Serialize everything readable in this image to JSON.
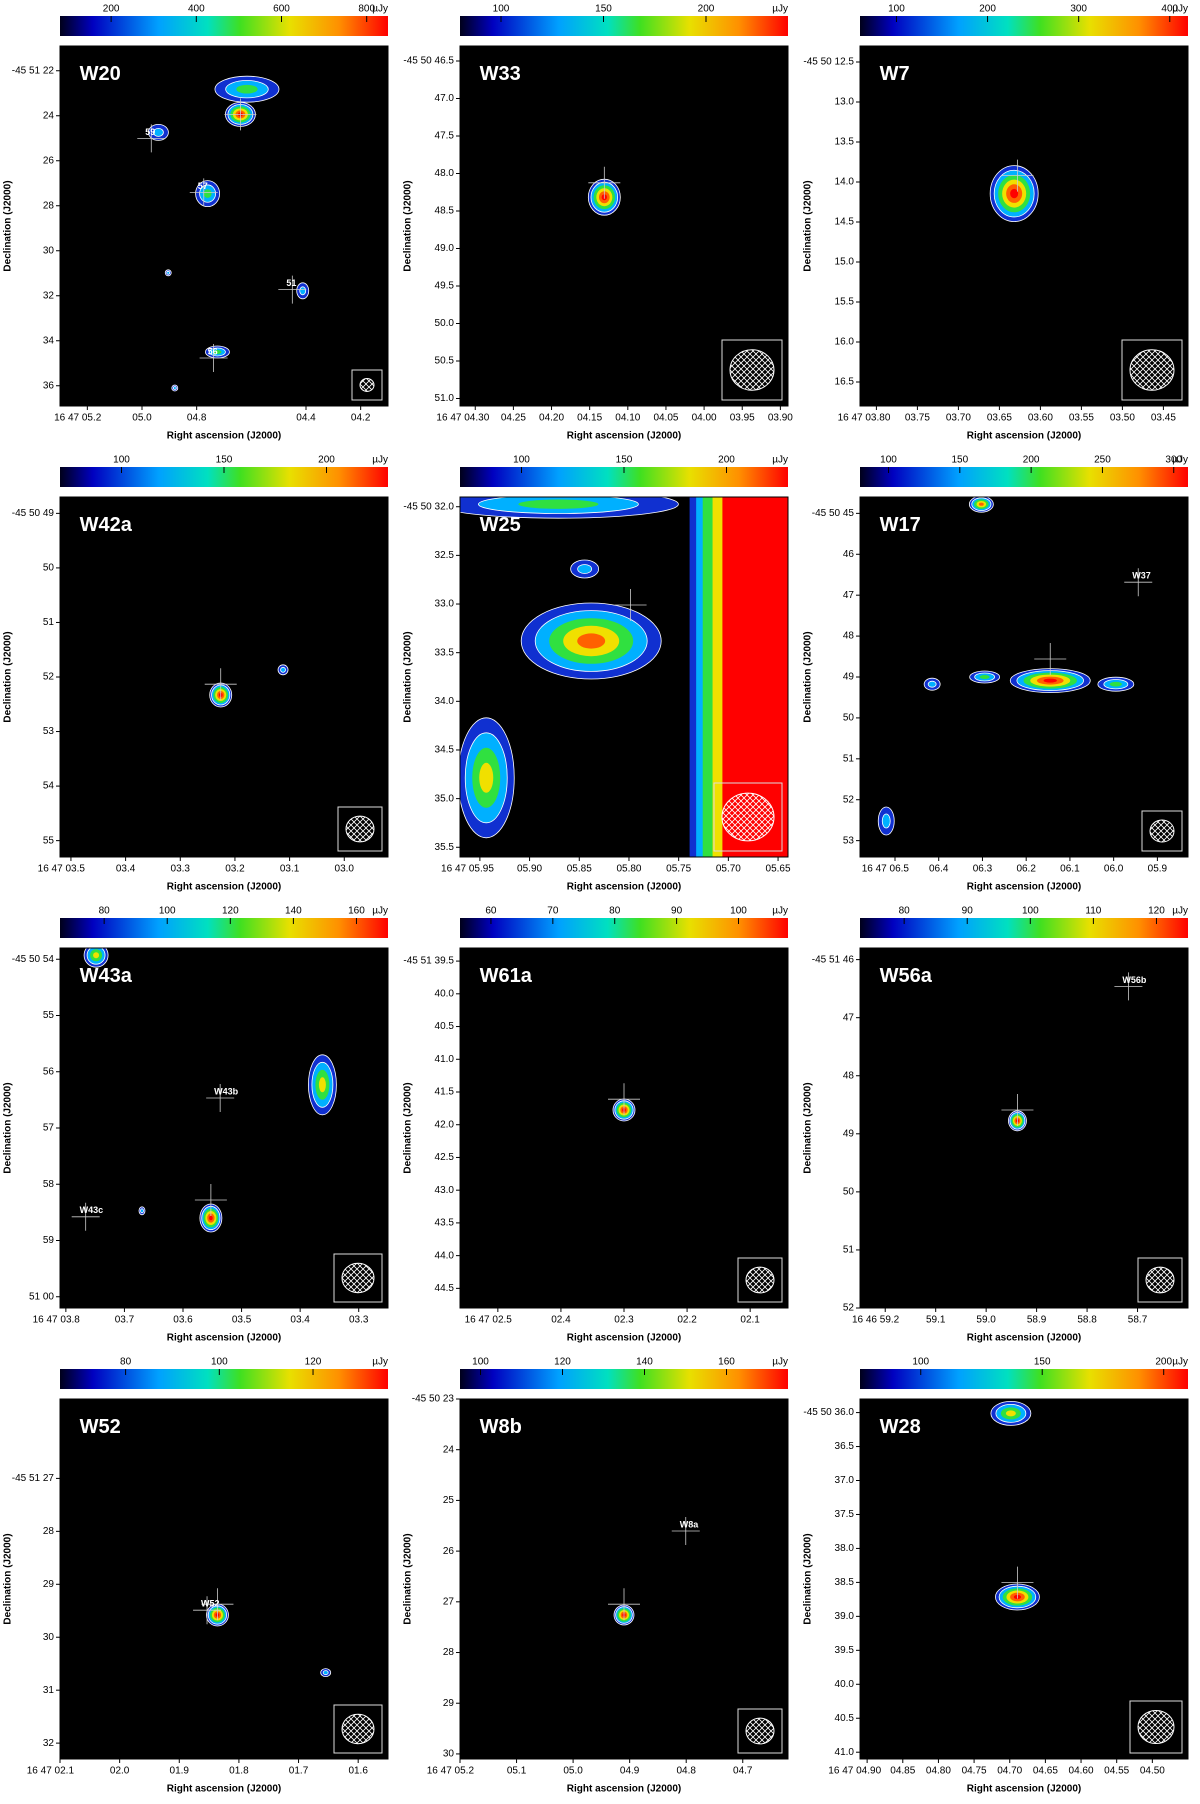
{
  "chart_data": [
    {
      "type": "image",
      "title": "W20",
      "unit": "µJy",
      "xlabel": "Right ascension (J2000)",
      "ylabel": "Declination (J2000)",
      "clim": [
        80,
        850
      ],
      "colorbar_ticks": [
        200,
        400,
        600,
        800
      ],
      "xlim": [
        5.3,
        4.1
      ],
      "ylim": [
        36.9,
        20.9
      ],
      "xticks": [
        {
          "value": 5.2,
          "label": "16 47 05.2"
        },
        {
          "value": 5.0,
          "label": "05.0"
        },
        {
          "value": 4.8,
          "label": "04.8"
        },
        {
          "value": 4.4,
          "label": "04.4"
        },
        {
          "value": 4.2,
          "label": "04.2"
        }
      ],
      "yticks": [
        {
          "value": 22,
          "label": "-45 51 22"
        },
        24,
        26,
        28,
        30,
        32,
        34,
        36
      ],
      "annotations": [
        "59",
        "57",
        "51",
        "56"
      ]
    },
    {
      "type": "image",
      "title": "W33",
      "unit": "µJy",
      "xlabel": "Right ascension (J2000)",
      "ylabel": "Declination (J2000)",
      "clim": [
        80,
        240
      ],
      "colorbar_ticks": [
        100,
        150,
        200
      ],
      "xlim": [
        4.32,
        3.89
      ],
      "ylim": [
        51.1,
        46.3
      ],
      "xticks": [
        {
          "value": 4.3,
          "label": "16 47 04.30"
        },
        {
          "value": 4.25,
          "label": "04.25"
        },
        {
          "value": 4.2,
          "label": "04.20"
        },
        {
          "value": 4.15,
          "label": "04.15"
        },
        {
          "value": 4.1,
          "label": "04.10"
        },
        {
          "value": 4.05,
          "label": "04.05"
        },
        {
          "value": 4.0,
          "label": "04.00"
        },
        {
          "value": 3.95,
          "label": "03.95"
        },
        {
          "value": 3.9,
          "label": "03.90"
        }
      ],
      "yticks": [
        {
          "value": 46.5,
          "label": "-45 50 46.5"
        },
        {
          "value": 47,
          "label": "47.0"
        },
        47.5,
        {
          "value": 48,
          "label": "48.0"
        },
        48.5,
        {
          "value": 49,
          "label": "49.0"
        },
        49.5,
        {
          "value": 50,
          "label": "50.0"
        },
        50.5,
        {
          "value": 51,
          "label": "51.0"
        }
      ],
      "annotations": []
    },
    {
      "type": "image",
      "title": "W7",
      "unit": "µJy",
      "xlabel": "Right ascension (J2000)",
      "ylabel": "Declination (J2000)",
      "clim": [
        60,
        420
      ],
      "colorbar_ticks": [
        100,
        200,
        300,
        400
      ],
      "xlim": [
        3.82,
        3.42
      ],
      "ylim": [
        16.8,
        12.3
      ],
      "xticks": [
        {
          "value": 3.8,
          "label": "16 47 03.80"
        },
        {
          "value": 3.75,
          "label": "03.75"
        },
        {
          "value": 3.7,
          "label": "03.70"
        },
        {
          "value": 3.65,
          "label": "03.65"
        },
        {
          "value": 3.6,
          "label": "03.60"
        },
        {
          "value": 3.55,
          "label": "03.55"
        },
        {
          "value": 3.5,
          "label": "03.50"
        },
        {
          "value": 3.45,
          "label": "03.45"
        }
      ],
      "yticks": [
        {
          "value": 12.5,
          "label": "-45 50 12.5"
        },
        {
          "value": 13,
          "label": "13.0"
        },
        13.5,
        {
          "value": 14,
          "label": "14.0"
        },
        14.5,
        {
          "value": 15,
          "label": "15.0"
        },
        15.5,
        {
          "value": 16,
          "label": "16.0"
        },
        16.5
      ],
      "annotations": []
    },
    {
      "type": "image",
      "title": "W42a",
      "unit": "µJy",
      "xlabel": "Right ascension (J2000)",
      "ylabel": "Declination (J2000)",
      "clim": [
        70,
        230
      ],
      "colorbar_ticks": [
        100,
        150,
        200
      ],
      "xlim": [
        3.52,
        2.92
      ],
      "ylim": [
        55.3,
        48.7
      ],
      "xticks": [
        {
          "value": 3.5,
          "label": "16 47 03.5"
        },
        {
          "value": 3.4,
          "label": "03.4"
        },
        {
          "value": 3.3,
          "label": "03.3"
        },
        {
          "value": 3.2,
          "label": "03.2"
        },
        {
          "value": 3.1,
          "label": "03.1"
        },
        {
          "value": 3.0,
          "label": "03.0"
        }
      ],
      "yticks": [
        {
          "value": 49,
          "label": "-45 50 49"
        },
        50,
        51,
        52,
        53,
        54,
        55
      ],
      "annotations": []
    },
    {
      "type": "image",
      "title": "W25",
      "unit": "µJy",
      "xlabel": "Right ascension (J2000)",
      "ylabel": "Declination (J2000)",
      "clim": [
        70,
        230
      ],
      "colorbar_ticks": [
        100,
        150,
        200
      ],
      "xlim": [
        5.97,
        5.64
      ],
      "ylim": [
        35.6,
        31.9
      ],
      "xticks": [
        {
          "value": 5.95,
          "label": "16 47 05.95"
        },
        {
          "value": 5.9,
          "label": "05.90"
        },
        {
          "value": 5.85,
          "label": "05.85"
        },
        {
          "value": 5.8,
          "label": "05.80"
        },
        {
          "value": 5.75,
          "label": "05.75"
        },
        {
          "value": 5.7,
          "label": "05.70"
        },
        {
          "value": 5.65,
          "label": "05.65"
        }
      ],
      "yticks": [
        {
          "value": 32,
          "label": "-45 50 32.0"
        },
        32.5,
        {
          "value": 33,
          "label": "33.0"
        },
        33.5,
        {
          "value": 34,
          "label": "34.0"
        },
        34.5,
        {
          "value": 35,
          "label": "35.0"
        },
        35.5
      ],
      "annotations": []
    },
    {
      "type": "image",
      "title": "W17",
      "unit": "µJy",
      "xlabel": "Right ascension (J2000)",
      "ylabel": "Declination (J2000)",
      "clim": [
        80,
        310
      ],
      "colorbar_ticks": [
        100,
        150,
        200,
        250,
        300
      ],
      "xlim": [
        6.58,
        5.83
      ],
      "ylim": [
        53.4,
        44.6
      ],
      "xticks": [
        {
          "value": 6.5,
          "label": "16 47 06.5"
        },
        {
          "value": 6.4,
          "label": "06.4"
        },
        {
          "value": 6.3,
          "label": "06.3"
        },
        {
          "value": 6.2,
          "label": "06.2"
        },
        {
          "value": 6.1,
          "label": "06.1"
        },
        {
          "value": 6.0,
          "label": "06.0"
        },
        {
          "value": 5.9,
          "label": "05.9"
        }
      ],
      "yticks": [
        {
          "value": 45,
          "label": "-45 50 45"
        },
        46,
        47,
        48,
        49,
        50,
        51,
        52,
        53
      ],
      "annotations": [
        "W37"
      ]
    },
    {
      "type": "image",
      "title": "W43a",
      "unit": "µJy",
      "xlabel": "Right ascension (J2000)",
      "ylabel": "Declination (J2000)",
      "clim": [
        66,
        170
      ],
      "colorbar_ticks": [
        80,
        100,
        120,
        140,
        160
      ],
      "xlim": [
        3.81,
        3.25
      ],
      "ylim": [
        60.2,
        53.8
      ],
      "xticks": [
        {
          "value": 3.8,
          "label": "16 47 03.8"
        },
        {
          "value": 3.7,
          "label": "03.7"
        },
        {
          "value": 3.6,
          "label": "03.6"
        },
        {
          "value": 3.5,
          "label": "03.5"
        },
        {
          "value": 3.4,
          "label": "03.4"
        },
        {
          "value": 3.3,
          "label": "03.3"
        }
      ],
      "yticks": [
        {
          "value": 54,
          "label": "-45 50 54"
        },
        55,
        56,
        57,
        58,
        59,
        {
          "value": 60,
          "label": "51 00"
        }
      ],
      "annotations": [
        "W43b",
        "W43c"
      ]
    },
    {
      "type": "image",
      "title": "W61a",
      "unit": "µJy",
      "xlabel": "Right ascension (J2000)",
      "ylabel": "Declination (J2000)",
      "clim": [
        55,
        108
      ],
      "colorbar_ticks": [
        60,
        70,
        80,
        90,
        100
      ],
      "xlim": [
        2.56,
        2.04
      ],
      "ylim": [
        44.8,
        39.3
      ],
      "xticks": [
        {
          "value": 2.5,
          "label": "16 47 02.5"
        },
        {
          "value": 2.4,
          "label": "02.4"
        },
        {
          "value": 2.3,
          "label": "02.3"
        },
        {
          "value": 2.2,
          "label": "02.2"
        },
        {
          "value": 2.1,
          "label": "02.1"
        }
      ],
      "yticks": [
        {
          "value": 39.5,
          "label": "-45 51 39.5"
        },
        {
          "value": 40,
          "label": "40.0"
        },
        40.5,
        {
          "value": 41,
          "label": "41.0"
        },
        41.5,
        {
          "value": 42,
          "label": "42.0"
        },
        42.5,
        {
          "value": 43,
          "label": "43.0"
        },
        43.5,
        {
          "value": 44,
          "label": "44.0"
        },
        44.5
      ],
      "annotations": []
    },
    {
      "type": "image",
      "title": "W56a",
      "unit": "µJy",
      "xlabel": "Right ascension (J2000)",
      "ylabel": "Declination (J2000)",
      "clim": [
        73,
        125
      ],
      "colorbar_ticks": [
        80,
        90,
        100,
        110,
        120
      ],
      "xlim": [
        59.25,
        58.6
      ],
      "ylim": [
        52,
        45.8
      ],
      "xticks": [
        {
          "value": 59.2,
          "label": "16 46 59.2"
        },
        59.1,
        {
          "value": 59.0,
          "label": "59.0"
        },
        58.9,
        58.8,
        58.7
      ],
      "yticks": [
        {
          "value": 46,
          "label": "-45 51 46"
        },
        47,
        48,
        49,
        50,
        51,
        52
      ],
      "annotations": [
        "W56b"
      ]
    },
    {
      "type": "image",
      "title": "W52",
      "unit": "µJy",
      "xlabel": "Right ascension (J2000)",
      "ylabel": "Declination (J2000)",
      "clim": [
        66,
        136
      ],
      "colorbar_ticks": [
        80,
        100,
        120
      ],
      "xlim": [
        2.1,
        1.55
      ],
      "ylim": [
        32.3,
        25.5
      ],
      "xticks": [
        {
          "value": 2.1,
          "label": "16 47 02.1"
        },
        {
          "value": 2.0,
          "label": "02.0"
        },
        {
          "value": 1.9,
          "label": "01.9"
        },
        {
          "value": 1.8,
          "label": "01.8"
        },
        {
          "value": 1.7,
          "label": "01.7"
        },
        {
          "value": 1.6,
          "label": "01.6"
        }
      ],
      "yticks": [
        {
          "value": 27,
          "label": "-45 51 27"
        },
        28,
        29,
        30,
        31,
        32
      ],
      "annotations": [
        "W52"
      ]
    },
    {
      "type": "image",
      "title": "W8b",
      "unit": "µJy",
      "xlabel": "Right ascension (J2000)",
      "ylabel": "Declination (J2000)",
      "clim": [
        95,
        175
      ],
      "colorbar_ticks": [
        100,
        120,
        140,
        160
      ],
      "xlim": [
        5.2,
        4.62
      ],
      "ylim": [
        30.1,
        23
      ],
      "xticks": [
        {
          "value": 5.2,
          "label": "16 47 05.2"
        },
        {
          "value": 5.1,
          "label": "05.1"
        },
        {
          "value": 5.0,
          "label": "05.0"
        },
        {
          "value": 4.9,
          "label": "04.9"
        },
        {
          "value": 4.8,
          "label": "04.8"
        },
        {
          "value": 4.7,
          "label": "04.7"
        }
      ],
      "yticks": [
        {
          "value": 23,
          "label": "-45 50 23"
        },
        24,
        25,
        26,
        27,
        28,
        29,
        30
      ],
      "annotations": [
        "W8a"
      ]
    },
    {
      "type": "image",
      "title": "W28",
      "unit": "µJy",
      "xlabel": "Right ascension (J2000)",
      "ylabel": "Declination (J2000)",
      "clim": [
        75,
        210
      ],
      "colorbar_ticks": [
        100,
        150,
        200
      ],
      "xlim": [
        4.91,
        4.45
      ],
      "ylim": [
        41.1,
        35.8
      ],
      "xticks": [
        {
          "value": 4.9,
          "label": "16 47 04.90"
        },
        {
          "value": 4.85,
          "label": "04.85"
        },
        {
          "value": 4.8,
          "label": "04.80"
        },
        {
          "value": 4.75,
          "label": "04.75"
        },
        {
          "value": 4.7,
          "label": "04.70"
        },
        {
          "value": 4.65,
          "label": "04.65"
        },
        {
          "value": 4.6,
          "label": "04.60"
        },
        {
          "value": 4.55,
          "label": "04.55"
        },
        {
          "value": 4.5,
          "label": "04.50"
        }
      ],
      "yticks": [
        {
          "value": 36,
          "label": "-45 50 36.0"
        },
        36.5,
        {
          "value": 37,
          "label": "37.0"
        },
        37.5,
        {
          "value": 38,
          "label": "38.0"
        },
        38.5,
        {
          "value": 39,
          "label": "39.0"
        },
        39.5,
        {
          "value": 40,
          "label": "40.0"
        },
        40.5,
        {
          "value": 41,
          "label": "41.0"
        }
      ],
      "annotations": []
    }
  ]
}
